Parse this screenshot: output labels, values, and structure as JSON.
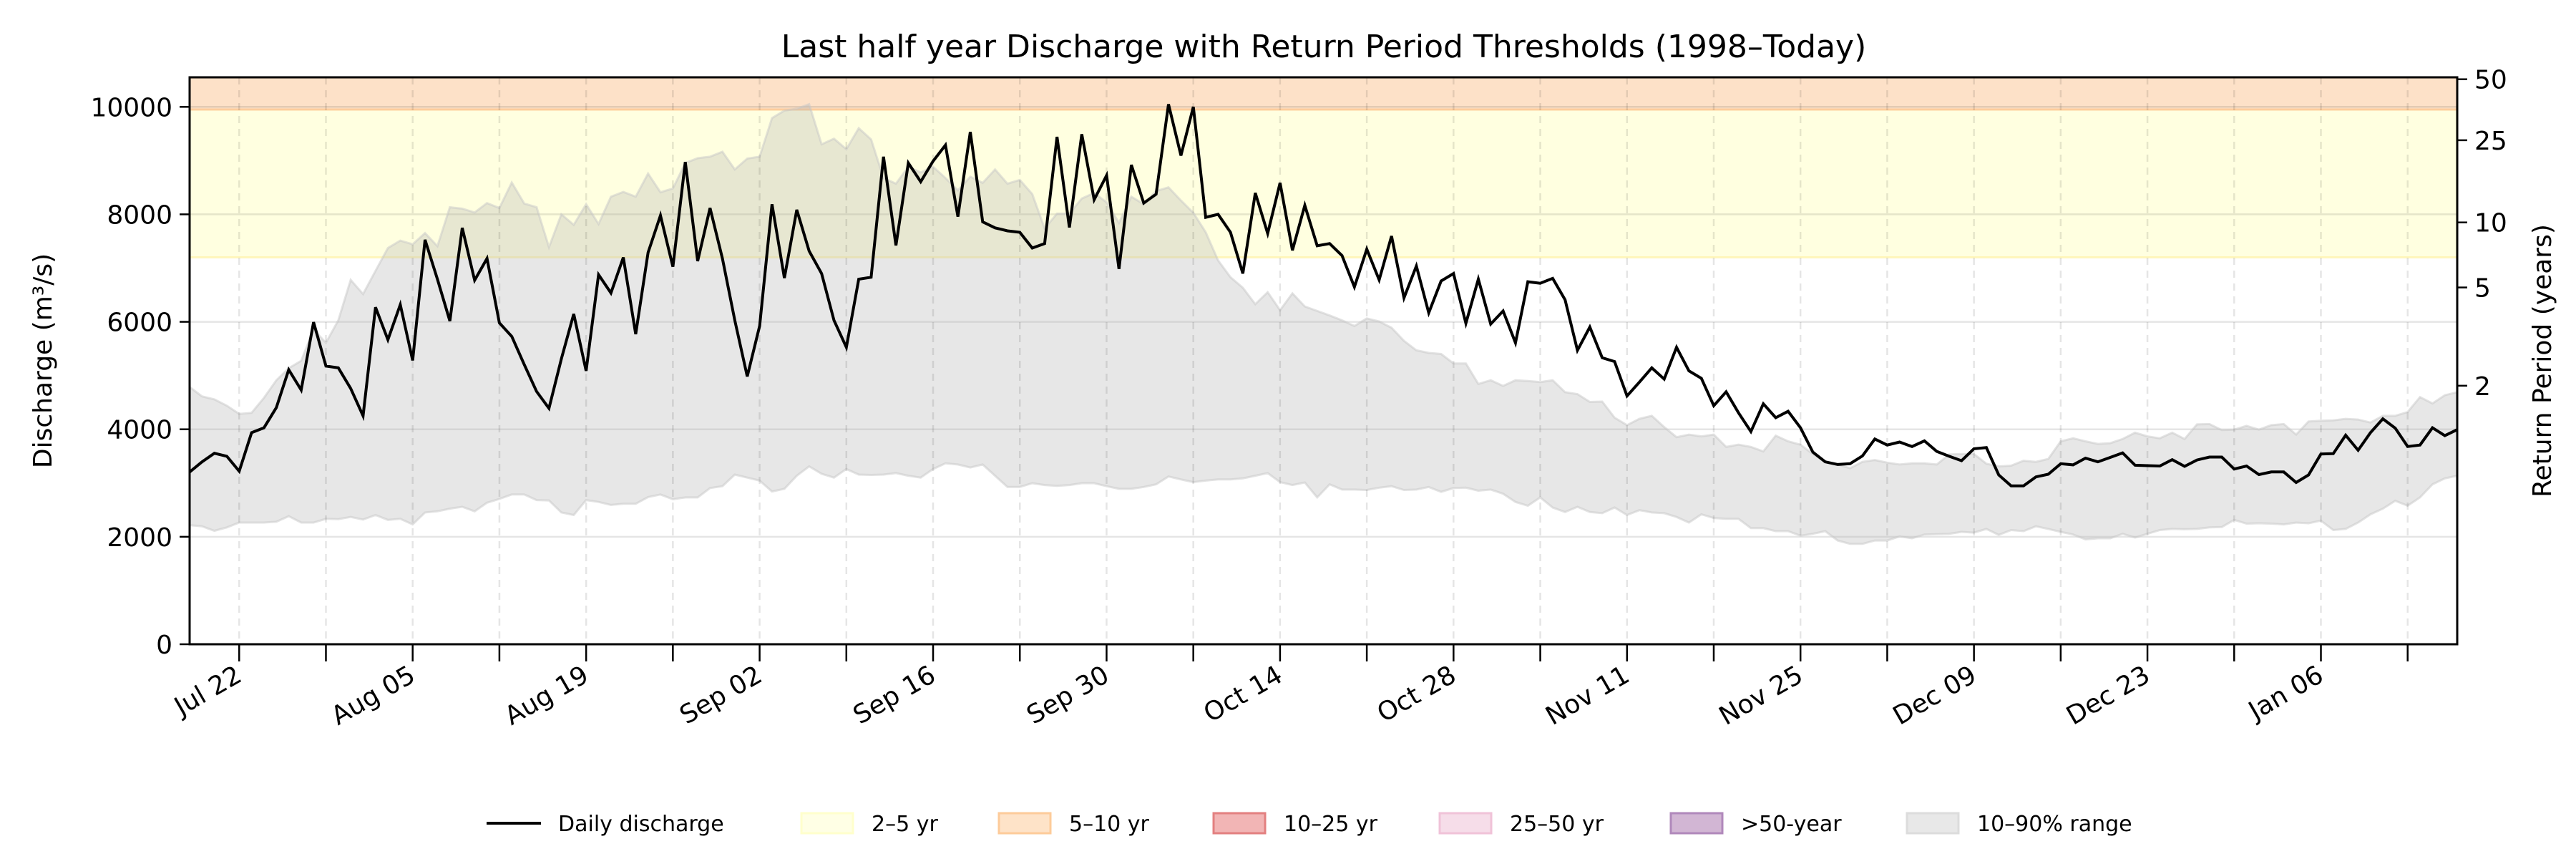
{
  "chart_data": {
    "type": "line",
    "title": "Last half year Discharge with Return Period Thresholds (1998–Today)",
    "ylabel": "Discharge (m³/s)",
    "y2label": "Return Period (years)",
    "ylim": [
      0,
      10550
    ],
    "yticks": [
      0,
      2000,
      4000,
      6000,
      8000,
      10000
    ],
    "y2_scale": "gumbel",
    "y2ticks": [
      2,
      5,
      10,
      25,
      50
    ],
    "xlim": [
      "Jul 18",
      "Jan 17"
    ],
    "x_frequency": "daily",
    "xtick_labels": [
      "Jul 22",
      "Aug 05",
      "Aug 19",
      "Sep 02",
      "Sep 16",
      "Sep 30",
      "Oct 14",
      "Oct 28",
      "Nov 11",
      "Nov 25",
      "Dec 09",
      "Dec 23",
      "Jan 06"
    ],
    "x_gridlines": "weekly",
    "grid": true,
    "legend_position": "bottom",
    "series": [
      {
        "name": "Daily discharge",
        "color": "#000000",
        "values": [
          3205,
          3394,
          3554,
          3498,
          3220,
          3937,
          4028,
          4404,
          5108,
          4732,
          5993,
          5178,
          5143,
          4760,
          4251,
          6272,
          5666,
          6320,
          5282,
          7526,
          6794,
          6014,
          7749,
          6774,
          7178,
          5979,
          5728,
          5206,
          4704,
          4390,
          5310,
          6146,
          5087,
          6878,
          6537,
          7199,
          5770,
          7289,
          7979,
          7024,
          8976,
          7129,
          8118,
          7178,
          6028,
          4983,
          5923,
          8188,
          6815,
          8084,
          7317,
          6899,
          6028,
          5526,
          6794,
          6829,
          9073,
          7422,
          8955,
          8606,
          8990,
          9289,
          7958,
          9533,
          7861,
          7749,
          7693,
          7666,
          7373,
          7456,
          9442,
          7756,
          9491,
          8272,
          8725,
          6983,
          8920,
          8209,
          8376,
          10049,
          9094,
          10000,
          7944,
          8000,
          7666,
          6899,
          8397,
          7645,
          8585,
          7331,
          8167,
          7415,
          7456,
          7233,
          6648,
          7352,
          6780,
          7596,
          6446,
          7038,
          6167,
          6760,
          6899,
          5972,
          6794,
          5958,
          6202,
          5610,
          6746,
          6718,
          6808,
          6411,
          5470,
          5902,
          5331,
          5261,
          4620,
          4878,
          5143,
          4934,
          5526,
          5087,
          4948,
          4439,
          4697,
          4307,
          3958,
          4474,
          4216,
          4334,
          4028,
          3575,
          3394,
          3345,
          3359,
          3505,
          3819,
          3707,
          3763,
          3679,
          3784,
          3589,
          3498,
          3415,
          3638,
          3659,
          3150,
          2948,
          2948,
          3115,
          3164,
          3359,
          3338,
          3463,
          3394,
          3477,
          3561,
          3331,
          3324,
          3317,
          3436,
          3310,
          3429,
          3484,
          3484,
          3261,
          3317,
          3157,
          3206,
          3206,
          3010,
          3150,
          3540,
          3547,
          3889,
          3610,
          3937,
          4195,
          4021,
          3679,
          3707,
          4028,
          3882,
          3993
        ]
      }
    ],
    "range_band": {
      "name": "10–90% range",
      "color": "#e6e6e6",
      "lower": [
        2216,
        2195,
        2111,
        2174,
        2265,
        2265,
        2265,
        2279,
        2383,
        2265,
        2265,
        2334,
        2328,
        2369,
        2321,
        2404,
        2314,
        2334,
        2230,
        2453,
        2474,
        2523,
        2557,
        2474,
        2634,
        2704,
        2787,
        2787,
        2683,
        2676,
        2453,
        2404,
        2683,
        2648,
        2592,
        2613,
        2613,
        2739,
        2787,
        2697,
        2732,
        2732,
        2906,
        2941,
        3157,
        3101,
        3045,
        2843,
        2892,
        3136,
        3310,
        3171,
        3101,
        3261,
        3157,
        3150,
        3157,
        3185,
        3136,
        3101,
        3261,
        3366,
        3345,
        3289,
        3345,
        3136,
        2927,
        2927,
        2997,
        2962,
        2948,
        2962,
        2997,
        2997,
        2941,
        2892,
        2892,
        2927,
        2976,
        3122,
        3066,
        3017,
        3045,
        3066,
        3066,
        3087,
        3136,
        3185,
        3017,
        2962,
        3010,
        2732,
        2976,
        2878,
        2878,
        2871,
        2913,
        2941,
        2871,
        2878,
        2927,
        2836,
        2906,
        2913,
        2857,
        2878,
        2801,
        2648,
        2578,
        2732,
        2544,
        2460,
        2557,
        2460,
        2439,
        2544,
        2404,
        2495,
        2453,
        2439,
        2369,
        2265,
        2418,
        2348,
        2334,
        2334,
        2160,
        2160,
        2105,
        2105,
        2021,
        2056,
        2105,
        1930,
        1868,
        1868,
        1930,
        1930,
        2007,
        1972,
        2042,
        2049,
        2056,
        2091,
        2077,
        2146,
        2035,
        2125,
        2105,
        2195,
        2146,
        2091,
        2042,
        1951,
        1972,
        1972,
        2056,
        1986,
        2056,
        2125,
        2146,
        2139,
        2146,
        2174,
        2181,
        2314,
        2244,
        2251,
        2244,
        2230,
        2265,
        2251,
        2300,
        2125,
        2146,
        2265,
        2418,
        2523,
        2669,
        2578,
        2732,
        2976,
        3087,
        3136
      ],
      "upper": [
        4787,
        4613,
        4557,
        4439,
        4286,
        4307,
        4585,
        4913,
        5136,
        5275,
        5854,
        5610,
        6028,
        6780,
        6516,
        6948,
        7373,
        7512,
        7443,
        7652,
        7408,
        8132,
        8105,
        8035,
        8209,
        8118,
        8592,
        8202,
        8132,
        7387,
        8000,
        7805,
        8188,
        7819,
        8328,
        8418,
        8328,
        8760,
        8411,
        8481,
        8955,
        9045,
        9073,
        9164,
        8836,
        9038,
        9073,
        9791,
        9930,
        9965,
        10049,
        9303,
        9408,
        9213,
        9603,
        9394,
        8676,
        8571,
        8885,
        8780,
        8885,
        8676,
        8446,
        8700,
        8585,
        8836,
        8571,
        8641,
        8376,
        7735,
        8014,
        8014,
        8293,
        8397,
        8223,
        7840,
        8328,
        8188,
        8432,
        8502,
        8258,
        8028,
        7666,
        7143,
        6829,
        6634,
        6328,
        6551,
        6216,
        6530,
        6286,
        6202,
        6118,
        6028,
        5923,
        6063,
        6007,
        5889,
        5645,
        5470,
        5422,
        5401,
        5226,
        5226,
        4843,
        4913,
        4808,
        4913,
        4899,
        4878,
        4913,
        4690,
        4655,
        4509,
        4516,
        4216,
        4077,
        4195,
        4251,
        4042,
        3854,
        3902,
        3868,
        3902,
        3672,
        3714,
        3672,
        3589,
        3882,
        3777,
        3714,
        3540,
        3401,
        3345,
        3275,
        3394,
        3429,
        3380,
        3345,
        3366,
        3366,
        3345,
        3533,
        3540,
        3540,
        3359,
        3310,
        3324,
        3415,
        3394,
        3449,
        3777,
        3833,
        3777,
        3728,
        3742,
        3819,
        3937,
        3868,
        3833,
        3937,
        3819,
        4091,
        4098,
        3986,
        3993,
        4063,
        3993,
        4077,
        4098,
        3902,
        4146,
        4160,
        4167,
        4195,
        4181,
        4125,
        4251,
        4251,
        4321,
        4599,
        4481,
        4634,
        4690
      ]
    },
    "threshold_bands": [
      {
        "label": "2–5 yr",
        "from": 7200,
        "to": 9950,
        "fill": "#ffffe0",
        "edge": "#fff5b0"
      },
      {
        "label": "5–10 yr",
        "from": 9950,
        "to": null,
        "fill": "#fde1c8",
        "edge": "#fdc690"
      }
    ],
    "legend": [
      {
        "label": "Daily discharge",
        "kind": "line",
        "color": "#000000"
      },
      {
        "label": "2–5 yr",
        "kind": "patch",
        "fill": "#ffffe5",
        "edge": "#ffffcc"
      },
      {
        "label": "5–10 yr",
        "kind": "patch",
        "fill": "#fee3c8",
        "edge": "#fdcb9a"
      },
      {
        "label": "10–25 yr",
        "kind": "patch",
        "fill": "#f2b5b5",
        "edge": "#e38080"
      },
      {
        "label": "25–50 yr",
        "kind": "patch",
        "fill": "#f6dde9",
        "edge": "#f0c2d8"
      },
      {
        "label": ">50-year",
        "kind": "patch",
        "fill": "#d2b6d4",
        "edge": "#b088bb"
      },
      {
        "label": "10–90% range",
        "kind": "patch",
        "fill": "#e8e8e8",
        "edge": "#dcdcdc"
      }
    ]
  }
}
